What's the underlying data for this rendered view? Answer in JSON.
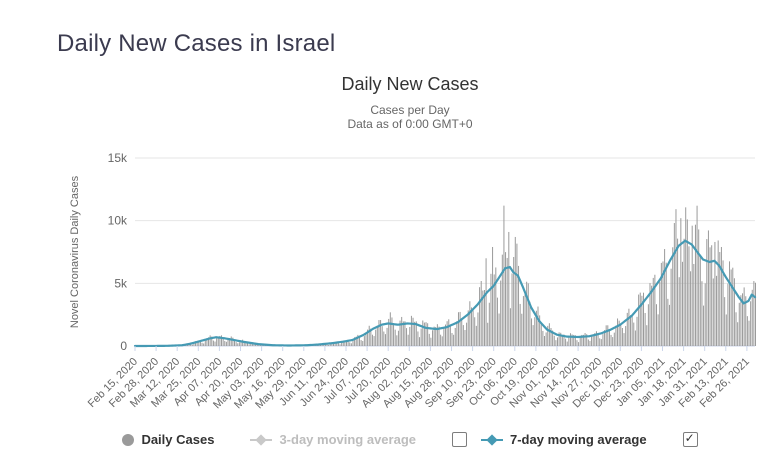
{
  "page": {
    "title": "Daily New Cases in Israel"
  },
  "chart": {
    "title": "Daily New Cases",
    "subtitle_line1": "Cases per Day",
    "subtitle_line2": "Data as of 0:00 GMT+0",
    "y_axis_title": "Novel Coronavirus Daily Cases"
  },
  "legend": {
    "daily_cases_label": "Daily Cases",
    "ma3_label": "3-day moving average",
    "ma3_enabled": false,
    "ma7_label": "7-day moving average",
    "ma7_enabled": true,
    "ma3_checkbox_checked": false,
    "ma7_checkbox_checked": true
  },
  "colors": {
    "line_teal": "#459ab4",
    "bar_gray": "#9a9a9a",
    "grid": "#e6e6e6",
    "axis_line": "#ccd6eb",
    "tick_text": "#666666",
    "title_text": "#333333",
    "page_title_text": "#3b3b4f",
    "legend_disabled": "#bdbdbd"
  },
  "chart_data": {
    "type": "bar",
    "title": "Daily New Cases",
    "xlabel": "",
    "ylabel": "Novel Coronavirus Daily Cases",
    "y_max": 15000,
    "y_ticks": [
      "0",
      "5k",
      "10k",
      "15k"
    ],
    "y_tick_values": [
      0,
      5000,
      10000,
      15000
    ],
    "start_date": "Feb 15, 2020",
    "total_days": 383,
    "tick_interval_days": 13,
    "x_ticks": [
      "Feb 15, 2020",
      "Feb 28, 2020",
      "Mar 12, 2020",
      "Mar 25, 2020",
      "Apr 07, 2020",
      "Apr 20, 2020",
      "May 03, 2020",
      "May 16, 2020",
      "May 29, 2020",
      "Jun 11, 2020",
      "Jun 24, 2020",
      "Jul 07, 2020",
      "Jul 20, 2020",
      "Aug 02, 2020",
      "Aug 15, 2020",
      "Aug 28, 2020",
      "Sep 10, 2020",
      "Sep 23, 2020",
      "Oct 06, 2020",
      "Oct 19, 2020",
      "Nov 01, 2020",
      "Nov 14, 2020",
      "Nov 27, 2020",
      "Dec 10, 2020",
      "Dec 23, 2020",
      "Jan 05, 2021",
      "Jan 18, 2021",
      "Jan 31, 2021",
      "Feb 13, 2021",
      "Feb 26, 2021"
    ],
    "series": [
      {
        "name": "Daily Cases",
        "type": "bar",
        "color": "#9a9a9a"
      },
      {
        "name": "7-day moving average",
        "type": "line",
        "color": "#459ab4"
      }
    ],
    "ma7_control_points": [
      [
        0,
        2
      ],
      [
        10,
        3
      ],
      [
        20,
        15
      ],
      [
        29,
        60
      ],
      [
        34,
        180
      ],
      [
        41,
        420
      ],
      [
        46,
        600
      ],
      [
        50,
        700
      ],
      [
        55,
        620
      ],
      [
        60,
        500
      ],
      [
        67,
        330
      ],
      [
        76,
        150
      ],
      [
        85,
        60
      ],
      [
        95,
        40
      ],
      [
        106,
        60
      ],
      [
        113,
        120
      ],
      [
        121,
        220
      ],
      [
        128,
        340
      ],
      [
        134,
        480
      ],
      [
        141,
        900
      ],
      [
        147,
        1400
      ],
      [
        152,
        1700
      ],
      [
        156,
        1800
      ],
      [
        162,
        1700
      ],
      [
        168,
        1800
      ],
      [
        173,
        1750
      ],
      [
        179,
        1450
      ],
      [
        186,
        1350
      ],
      [
        192,
        1500
      ],
      [
        199,
        1900
      ],
      [
        205,
        2500
      ],
      [
        211,
        3300
      ],
      [
        217,
        4300
      ],
      [
        221,
        4800
      ],
      [
        224,
        5400
      ],
      [
        228,
        6200
      ],
      [
        231,
        6300
      ],
      [
        233,
        5900
      ],
      [
        236,
        5600
      ],
      [
        239,
        4700
      ],
      [
        244,
        3100
      ],
      [
        249,
        2000
      ],
      [
        254,
        1300
      ],
      [
        260,
        900
      ],
      [
        266,
        750
      ],
      [
        273,
        720
      ],
      [
        280,
        780
      ],
      [
        287,
        1000
      ],
      [
        293,
        1300
      ],
      [
        299,
        1700
      ],
      [
        306,
        2400
      ],
      [
        312,
        3300
      ],
      [
        318,
        4300
      ],
      [
        324,
        5400
      ],
      [
        330,
        6900
      ],
      [
        335,
        8000
      ],
      [
        339,
        8400
      ],
      [
        343,
        8100
      ],
      [
        347,
        7400
      ],
      [
        350,
        6900
      ],
      [
        354,
        6700
      ],
      [
        357,
        6800
      ],
      [
        360,
        6400
      ],
      [
        364,
        5500
      ],
      [
        368,
        4700
      ],
      [
        372,
        3900
      ],
      [
        375,
        3400
      ],
      [
        378,
        3600
      ],
      [
        380,
        4100
      ],
      [
        382,
        3900
      ]
    ],
    "bar_weekly_pattern": [
      0.5,
      0.85,
      1.2,
      1.3,
      1.25,
      1.1,
      0.7
    ],
    "bar_overrides": {
      "216": 7000,
      "220": 7900,
      "227": 11200,
      "230": 9100,
      "234": 8700,
      "336": 10200,
      "340": 10100,
      "343": 9600,
      "347": 9300,
      "357": 8300,
      "361": 7900
    }
  }
}
